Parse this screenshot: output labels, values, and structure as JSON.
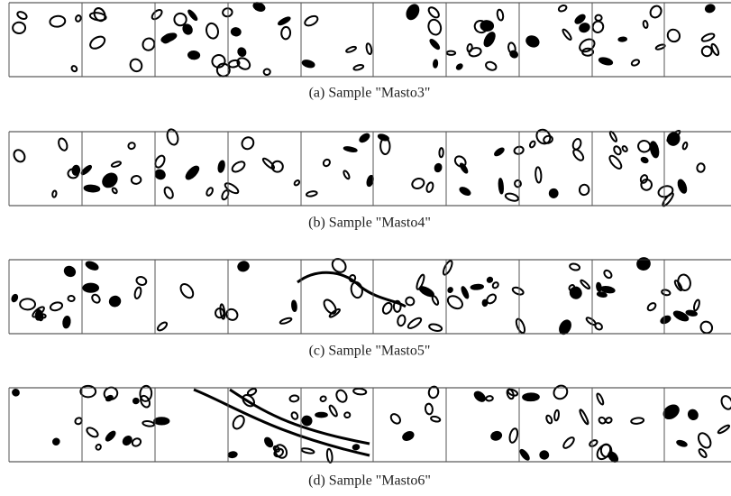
{
  "panels": [
    {
      "caption": "(a) Sample \"Masto3\""
    },
    {
      "caption": "(b) Sample \"Masto4\""
    },
    {
      "caption": "(c) Sample \"Masto5\""
    },
    {
      "caption": "(d) Sample \"Masto6\""
    }
  ]
}
